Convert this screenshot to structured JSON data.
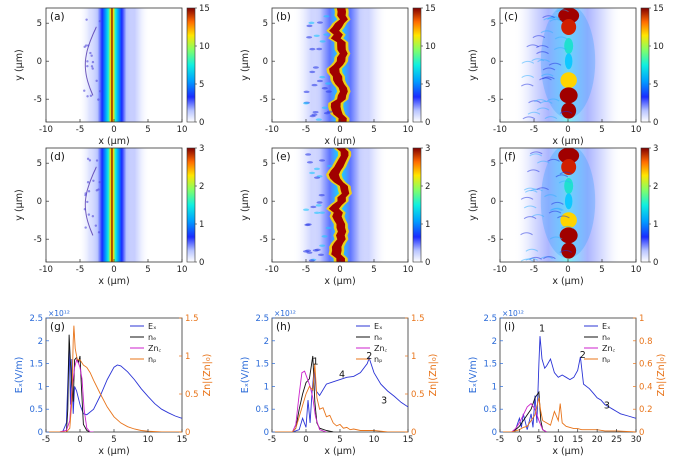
{
  "figure": {
    "colorbar_ticks_top": [
      "0",
      "5",
      "10",
      "15"
    ],
    "colorbar_ticks_mid": [
      "0",
      "1",
      "2",
      "3"
    ],
    "xlabel": "x (μm)",
    "ylabel": "y (μm)",
    "xticks_map": [
      "-10",
      "-5",
      "0",
      "5",
      "10"
    ],
    "yticks_map": [
      "-5",
      "0",
      "5"
    ]
  },
  "chart_data": [
    {
      "id": "a",
      "label": "(a)",
      "type": "heatmap",
      "xlim": [
        -10,
        10
      ],
      "ylim": [
        -8,
        7
      ],
      "cbar": [
        0,
        15
      ],
      "pattern": "band",
      "title": ""
    },
    {
      "id": "b",
      "label": "(b)",
      "type": "heatmap",
      "xlim": [
        -10,
        10
      ],
      "ylim": [
        -8,
        7
      ],
      "cbar": [
        0,
        15
      ],
      "pattern": "wavy",
      "title": ""
    },
    {
      "id": "c",
      "label": "(c)",
      "type": "heatmap",
      "xlim": [
        -10,
        10
      ],
      "ylim": [
        -8,
        7
      ],
      "cbar": [
        0,
        15
      ],
      "pattern": "clumps",
      "title": ""
    },
    {
      "id": "d",
      "label": "(d)",
      "type": "heatmap",
      "xlim": [
        -10,
        10
      ],
      "ylim": [
        -8,
        7
      ],
      "cbar": [
        0,
        3
      ],
      "pattern": "band",
      "title": ""
    },
    {
      "id": "e",
      "label": "(e)",
      "type": "heatmap",
      "xlim": [
        -10,
        10
      ],
      "ylim": [
        -8,
        7
      ],
      "cbar": [
        0,
        3
      ],
      "pattern": "wavy",
      "title": ""
    },
    {
      "id": "f",
      "label": "(f)",
      "type": "heatmap",
      "xlim": [
        -10,
        10
      ],
      "ylim": [
        -8,
        7
      ],
      "cbar": [
        0,
        3
      ],
      "pattern": "clumps",
      "title": ""
    },
    {
      "id": "g",
      "label": "(g)",
      "type": "line",
      "xlabel": "x (μm)",
      "ylabel_left": "Eₓ(V/m)",
      "ylabel_right": "Zn|(Zn|₀)",
      "multiplier": "×10¹²",
      "xlim": [
        -5,
        15
      ],
      "xticks": [
        "-5",
        "0",
        "5",
        "10",
        "15"
      ],
      "ylim_left": [
        0,
        2.5
      ],
      "yticks_left": [
        "0",
        "0.5",
        "1",
        "1.5",
        "2",
        "2.5"
      ],
      "ylim_right": [
        0,
        1.5
      ],
      "yticks_right": [
        "0",
        "0.5",
        "1",
        "1.5"
      ],
      "legend": [
        "Eₓ",
        "nₑ",
        "Zn꜀",
        "nₚ"
      ],
      "series": [
        {
          "name": "Eₓ",
          "axis": "left",
          "color": "#2b34d6",
          "x": [
            -5,
            -4,
            -3,
            -2.5,
            -2,
            -1.6,
            -1.4,
            -1.2,
            -1.0,
            -0.8,
            -0.5,
            0,
            0.5,
            1,
            2,
            3,
            4,
            5,
            5.5,
            6,
            7,
            8,
            9,
            10,
            11,
            12,
            13,
            14,
            15
          ],
          "y": [
            0,
            0,
            0,
            0.02,
            0.2,
            1.9,
            0.6,
            1.6,
            0.4,
            1.0,
            0.9,
            0.6,
            0.4,
            0.38,
            0.5,
            0.8,
            1.15,
            1.42,
            1.47,
            1.45,
            1.32,
            1.15,
            0.95,
            0.78,
            0.62,
            0.5,
            0.42,
            0.35,
            0.3
          ]
        },
        {
          "name": "nₑ",
          "axis": "right",
          "color": "#111111",
          "x": [
            -5,
            -3,
            -2,
            -1.8,
            -1.6,
            -1.4,
            -1.2,
            -1.0,
            -0.8,
            -0.5,
            -0.2,
            0,
            0.2,
            0.5,
            1,
            1.5,
            2
          ],
          "y": [
            0,
            0,
            0,
            0.3,
            1.28,
            0.9,
            0.6,
            0.4,
            0.95,
            0.98,
            0.92,
            1.0,
            0.6,
            0.1,
            0.02,
            0,
            0
          ]
        },
        {
          "name": "Zn꜀",
          "axis": "right",
          "color": "#cc22cc",
          "x": [
            -5,
            -3,
            -2,
            -1.5,
            -1.2,
            -0.8,
            -0.5,
            -0.2,
            0,
            0.3,
            0.6,
            1,
            1.5,
            2
          ],
          "y": [
            0,
            0,
            0.02,
            0.15,
            0.55,
            0.85,
            0.95,
            0.9,
            0.85,
            0.7,
            0.3,
            0.05,
            0,
            0
          ]
        },
        {
          "name": "nₚ",
          "axis": "right",
          "color": "#e8741a",
          "x": [
            -5,
            -3,
            -2,
            -1.5,
            -1.2,
            -1.0,
            -0.9,
            -0.7,
            -0.4,
            0,
            0.5,
            1,
            1.5,
            2,
            3,
            4,
            5,
            6,
            7,
            8,
            9,
            10,
            12,
            15
          ],
          "y": [
            0,
            0,
            0,
            0.05,
            0.4,
            1.2,
            1.4,
            1.1,
            0.95,
            0.95,
            0.88,
            0.85,
            0.78,
            0.68,
            0.5,
            0.33,
            0.2,
            0.12,
            0.07,
            0.04,
            0.02,
            0.01,
            0,
            0
          ]
        }
      ]
    },
    {
      "id": "h",
      "label": "(h)",
      "type": "line",
      "xlabel": "x (μm)",
      "ylabel_left": "Eₓ(V/m)",
      "ylabel_right": "Zn|(Zn|₀)",
      "multiplier": "×10¹²",
      "xlim": [
        -5,
        15
      ],
      "xticks": [
        "-5",
        "0",
        "5",
        "10",
        "15"
      ],
      "ylim_left": [
        0,
        2.5
      ],
      "yticks_left": [
        "0",
        "0.5",
        "1",
        "1.5",
        "2",
        "2.5"
      ],
      "ylim_right": [
        0,
        1.5
      ],
      "yticks_right": [
        "0",
        "0.5",
        "1",
        "1.5"
      ],
      "legend": [
        "Eₓ",
        "nₑ",
        "Zn꜀",
        "nₚ"
      ],
      "annotations": [
        {
          "text": "1",
          "x": 1.4,
          "y": 1.48
        },
        {
          "text": "2",
          "x": 9.3,
          "y": 1.6
        },
        {
          "text": "3",
          "x": 11.5,
          "y": 0.62
        },
        {
          "text": "4",
          "x": 5.3,
          "y": 1.2
        }
      ],
      "series": [
        {
          "name": "Eₓ",
          "axis": "left",
          "color": "#2b34d6",
          "x": [
            -5,
            -2,
            -1,
            -0.5,
            0,
            0.3,
            0.6,
            0.9,
            1.2,
            1.5,
            2,
            3,
            4,
            5,
            6,
            7,
            8,
            9,
            9.3,
            10,
            11,
            12,
            13,
            14,
            15
          ],
          "y": [
            0,
            0,
            0.05,
            0.3,
            0.1,
            0.7,
            0.2,
            0.9,
            1.4,
            0.9,
            0.8,
            1.05,
            1.1,
            1.15,
            1.2,
            1.22,
            1.3,
            1.5,
            1.62,
            1.3,
            1.05,
            0.9,
            0.78,
            0.65,
            0.55
          ]
        },
        {
          "name": "nₑ",
          "axis": "right",
          "color": "#111111",
          "x": [
            -5,
            -2,
            -1.5,
            -1,
            -0.5,
            0,
            0.5,
            1,
            1.3,
            1.6,
            2,
            3,
            4
          ],
          "y": [
            0,
            0,
            0.05,
            0.3,
            0.5,
            0.65,
            0.7,
            1.0,
            0.4,
            0.12,
            0.05,
            0.02,
            0
          ]
        },
        {
          "name": "Zn꜀",
          "axis": "right",
          "color": "#cc22cc",
          "x": [
            -5,
            -2,
            -1.5,
            -1,
            -0.6,
            -0.2,
            0.2,
            0.6,
            1,
            1.4,
            2,
            3
          ],
          "y": [
            0,
            0,
            0.1,
            0.5,
            0.78,
            0.8,
            0.7,
            0.6,
            0.45,
            0.2,
            0.03,
            0
          ]
        },
        {
          "name": "nₚ",
          "axis": "right",
          "color": "#e8741a",
          "x": [
            -5,
            -2,
            -1.5,
            -1,
            0,
            0.5,
            1,
            1.3,
            1.6,
            2,
            2.5,
            3,
            3.5,
            4,
            4.5,
            5,
            5.5,
            6,
            6.5,
            7,
            8,
            9,
            10,
            11,
            12,
            15
          ],
          "y": [
            0,
            0,
            0.05,
            0.2,
            0.5,
            0.6,
            0.55,
            0.9,
            0.45,
            0.3,
            0.32,
            0.2,
            0.22,
            0.12,
            0.08,
            0.1,
            0.05,
            0.06,
            0.03,
            0.04,
            0.02,
            0.02,
            0.02,
            0.01,
            0,
            0
          ]
        }
      ]
    },
    {
      "id": "i",
      "label": "(i)",
      "type": "line",
      "xlabel": "x (μm)",
      "ylabel_left": "Eₓ(V/m)",
      "ylabel_right": "Zn|(Zn|₀)",
      "multiplier": "×10¹²",
      "xlim": [
        -5,
        30
      ],
      "xticks": [
        "-5",
        "0",
        "5",
        "10",
        "15",
        "20",
        "25",
        "30"
      ],
      "ylim_left": [
        0,
        2.5
      ],
      "yticks_left": [
        "0",
        "0.5",
        "1",
        "1.5",
        "2",
        "2.5"
      ],
      "ylim_right": [
        0,
        1.0
      ],
      "yticks_right": [
        "0",
        "0.2",
        "0.4",
        "0.6",
        "0.8",
        "1"
      ],
      "legend": [
        "Eₓ",
        "nₑ",
        "Zn꜀",
        "nₚ"
      ],
      "annotations": [
        {
          "text": "1",
          "x": 5.8,
          "y": 2.2
        },
        {
          "text": "2",
          "x": 16.3,
          "y": 1.62
        },
        {
          "text": "3",
          "x": 22.5,
          "y": 0.52
        }
      ],
      "series": [
        {
          "name": "Eₓ",
          "axis": "left",
          "color": "#2b34d6",
          "x": [
            -5,
            -2,
            -1,
            0,
            0.5,
            1,
            2,
            3,
            3.5,
            4,
            4.5,
            5,
            5.3,
            5.8,
            6.5,
            7,
            8,
            9,
            10,
            11,
            12,
            13,
            14,
            15,
            15.7,
            16.5,
            18,
            19,
            20,
            21,
            22,
            23,
            24,
            25,
            26,
            28,
            30
          ],
          "y": [
            0,
            0,
            0.05,
            0.3,
            0.1,
            0.4,
            0.05,
            0.4,
            0.1,
            0.8,
            0.2,
            1.5,
            2.1,
            1.6,
            1.4,
            1.45,
            1.6,
            1.3,
            1.2,
            1.25,
            1.2,
            1.15,
            1.2,
            1.35,
            1.65,
            1.05,
            0.95,
            0.85,
            0.75,
            0.7,
            0.6,
            0.55,
            0.5,
            0.45,
            0.4,
            0.35,
            0.3
          ]
        },
        {
          "name": "nₑ",
          "axis": "right",
          "color": "#111111",
          "x": [
            -5,
            -2,
            -1,
            0,
            1,
            2,
            3,
            4,
            5,
            5.5,
            6,
            7
          ],
          "y": [
            0,
            0,
            0.02,
            0.05,
            0.1,
            0.15,
            0.2,
            0.3,
            0.35,
            0.1,
            0.02,
            0
          ]
        },
        {
          "name": "Zn꜀",
          "axis": "right",
          "color": "#cc22cc",
          "x": [
            -5,
            -2,
            -1,
            0,
            1,
            2,
            3,
            4,
            5,
            6,
            7
          ],
          "y": [
            0,
            0,
            0.03,
            0.08,
            0.15,
            0.22,
            0.25,
            0.2,
            0.1,
            0.02,
            0
          ]
        },
        {
          "name": "nₚ",
          "axis": "right",
          "color": "#e8741a",
          "x": [
            -5,
            -2,
            0,
            1,
            2,
            3,
            4,
            5,
            5.5,
            6,
            7,
            8,
            9,
            10,
            10.5,
            11,
            12,
            13,
            14,
            15,
            16,
            18,
            20,
            22,
            25,
            30
          ],
          "y": [
            0,
            0,
            0.02,
            0.04,
            0.05,
            0.1,
            0.15,
            0.3,
            0.18,
            0.1,
            0.08,
            0.06,
            0.18,
            0.1,
            0.25,
            0.08,
            0.05,
            0.04,
            0.03,
            0.03,
            0.02,
            0.02,
            0.02,
            0.01,
            0.01,
            0
          ]
        }
      ]
    }
  ]
}
